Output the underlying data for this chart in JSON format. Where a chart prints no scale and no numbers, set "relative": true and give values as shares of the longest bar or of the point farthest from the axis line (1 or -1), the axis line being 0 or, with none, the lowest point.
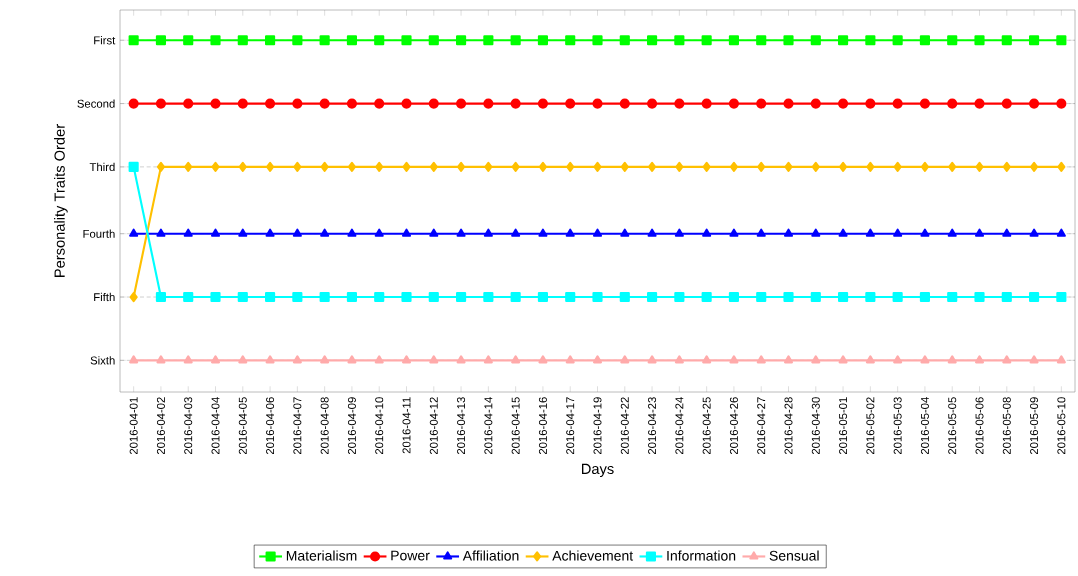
{
  "chart_data": {
    "type": "line",
    "xlabel": "Days",
    "ylabel": "Personality Traits Order",
    "relative": true,
    "categories": [
      "2016-04-01",
      "2016-04-02",
      "2016-04-03",
      "2016-04-04",
      "2016-04-05",
      "2016-04-06",
      "2016-04-07",
      "2016-04-08",
      "2016-04-09",
      "2016-04-10",
      "2016-04-11",
      "2016-04-12",
      "2016-04-13",
      "2016-04-14",
      "2016-04-15",
      "2016-04-16",
      "2016-04-17",
      "2016-04-19",
      "2016-04-22",
      "2016-04-23",
      "2016-04-24",
      "2016-04-25",
      "2016-04-26",
      "2016-04-27",
      "2016-04-28",
      "2016-04-30",
      "2016-05-01",
      "2016-05-02",
      "2016-05-03",
      "2016-05-04",
      "2016-05-05",
      "2016-05-06",
      "2016-05-08",
      "2016-05-09",
      "2016-05-10"
    ],
    "annotations": [
      "First",
      "Second",
      "Third",
      "Fourth",
      "Fifth",
      "Sixth"
    ],
    "grid": "y",
    "legend": "bottom",
    "line_style": "solid",
    "series": [
      {
        "name": "Materialism",
        "color": "#00ff00",
        "marker": "square",
        "values": [
          1,
          1,
          1,
          1,
          1,
          1,
          1,
          1,
          1,
          1,
          1,
          1,
          1,
          1,
          1,
          1,
          1,
          1,
          1,
          1,
          1,
          1,
          1,
          1,
          1,
          1,
          1,
          1,
          1,
          1,
          1,
          1,
          1,
          1,
          1
        ]
      },
      {
        "name": "Power",
        "color": "#ff0000",
        "marker": "circle",
        "values": [
          0.82,
          0.82,
          0.82,
          0.82,
          0.82,
          0.82,
          0.82,
          0.82,
          0.82,
          0.82,
          0.82,
          0.82,
          0.82,
          0.82,
          0.82,
          0.82,
          0.82,
          0.82,
          0.82,
          0.82,
          0.82,
          0.82,
          0.82,
          0.82,
          0.82,
          0.82,
          0.82,
          0.82,
          0.82,
          0.82,
          0.82,
          0.82,
          0.82,
          0.82,
          0.82
        ]
      },
      {
        "name": "Affiliation",
        "color": "#0000ff",
        "marker": "triangle",
        "values": [
          0.45,
          0.45,
          0.45,
          0.45,
          0.45,
          0.45,
          0.45,
          0.45,
          0.45,
          0.45,
          0.45,
          0.45,
          0.45,
          0.45,
          0.45,
          0.45,
          0.45,
          0.45,
          0.45,
          0.45,
          0.45,
          0.45,
          0.45,
          0.45,
          0.45,
          0.45,
          0.45,
          0.45,
          0.45,
          0.45,
          0.45,
          0.45,
          0.45,
          0.45,
          0.45
        ]
      },
      {
        "name": "Achievement",
        "color": "#ffc000",
        "marker": "diamond",
        "values": [
          0.27,
          0.64,
          0.64,
          0.64,
          0.64,
          0.64,
          0.64,
          0.64,
          0.64,
          0.64,
          0.64,
          0.64,
          0.64,
          0.64,
          0.64,
          0.64,
          0.64,
          0.64,
          0.64,
          0.64,
          0.64,
          0.64,
          0.64,
          0.64,
          0.64,
          0.64,
          0.64,
          0.64,
          0.64,
          0.64,
          0.64,
          0.64,
          0.64,
          0.64,
          0.64
        ]
      },
      {
        "name": "Information",
        "color": "#00ffff",
        "marker": "square",
        "values": [
          0.64,
          0.27,
          0.27,
          0.27,
          0.27,
          0.27,
          0.27,
          0.27,
          0.27,
          0.27,
          0.27,
          0.27,
          0.27,
          0.27,
          0.27,
          0.27,
          0.27,
          0.27,
          0.27,
          0.27,
          0.27,
          0.27,
          0.27,
          0.27,
          0.27,
          0.27,
          0.27,
          0.27,
          0.27,
          0.27,
          0.27,
          0.27,
          0.27,
          0.27,
          0.27
        ]
      },
      {
        "name": "Sensual",
        "color": "#ffaaaa",
        "marker": "triangle",
        "values": [
          0.09,
          0.09,
          0.09,
          0.09,
          0.09,
          0.09,
          0.09,
          0.09,
          0.09,
          0.09,
          0.09,
          0.09,
          0.09,
          0.09,
          0.09,
          0.09,
          0.09,
          0.09,
          0.09,
          0.09,
          0.09,
          0.09,
          0.09,
          0.09,
          0.09,
          0.09,
          0.09,
          0.09,
          0.09,
          0.09,
          0.09,
          0.09,
          0.09,
          0.09,
          0.09
        ]
      }
    ]
  }
}
